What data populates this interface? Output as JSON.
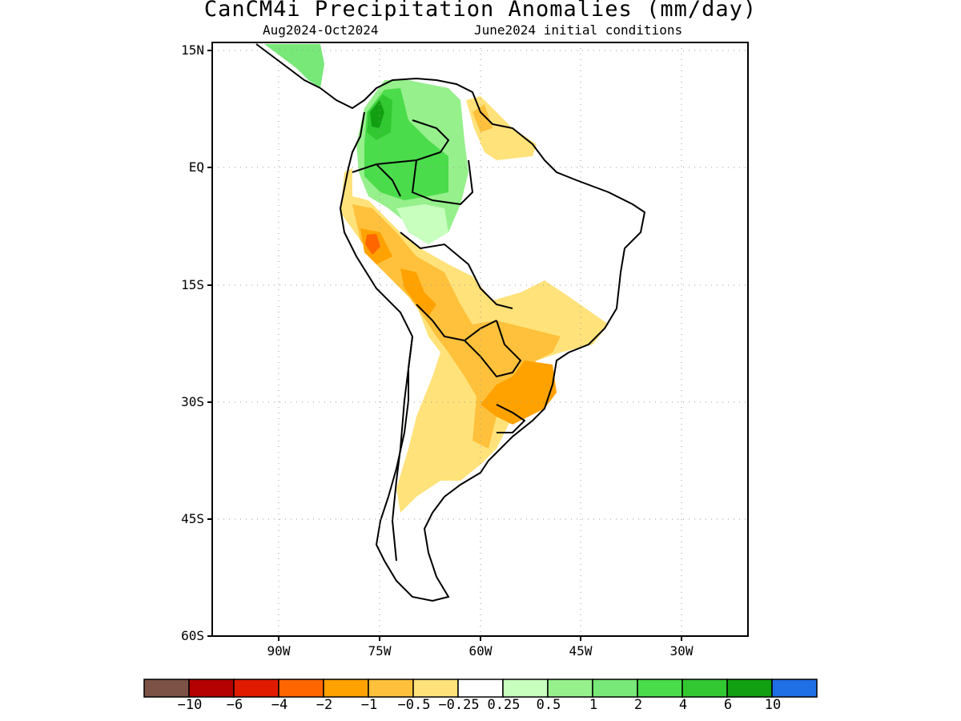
{
  "title": "CanCM4i Precipitation Anomalies (mm/day)",
  "subtitle_left": "Aug2024-Oct2024",
  "subtitle_right": "June2024 initial conditions",
  "axes": {
    "lat_labels": [
      "15N",
      "EQ",
      "15S",
      "30S",
      "45S",
      "60S"
    ],
    "lat_values": [
      15,
      0,
      -15,
      -30,
      -45,
      -60
    ],
    "lon_labels": [
      "90W",
      "75W",
      "60W",
      "45W",
      "30W"
    ],
    "lon_values": [
      -90,
      -75,
      -60,
      -45,
      -30
    ],
    "lon_range": [
      -100,
      -20
    ],
    "lat_range": [
      -60,
      16
    ],
    "grid": "dotted"
  },
  "colorbar": {
    "colors": [
      "#7b5245",
      "#b40000",
      "#e01b00",
      "#ff6600",
      "#ffa200",
      "#ffc13b",
      "#ffe27a",
      "#ffffff",
      "#c8ffbe",
      "#96f08c",
      "#78e878",
      "#4bdc4b",
      "#32c832",
      "#12a012",
      "#1f6fe6"
    ],
    "labels": [
      "−10",
      "−6",
      "−4",
      "−2",
      "−1",
      "−0.5",
      "−0.25",
      "0.25",
      "0.5",
      "1",
      "2",
      "4",
      "6",
      "10"
    ]
  },
  "colors": {
    "outline": "#000000",
    "green_light": "#96f08c",
    "green_mid": "#4bdc4b",
    "green_dark": "#12a012",
    "yellow": "#ffe27a",
    "orange_light": "#ffc13b",
    "orange": "#ffa200",
    "red_orange": "#ff6600"
  }
}
